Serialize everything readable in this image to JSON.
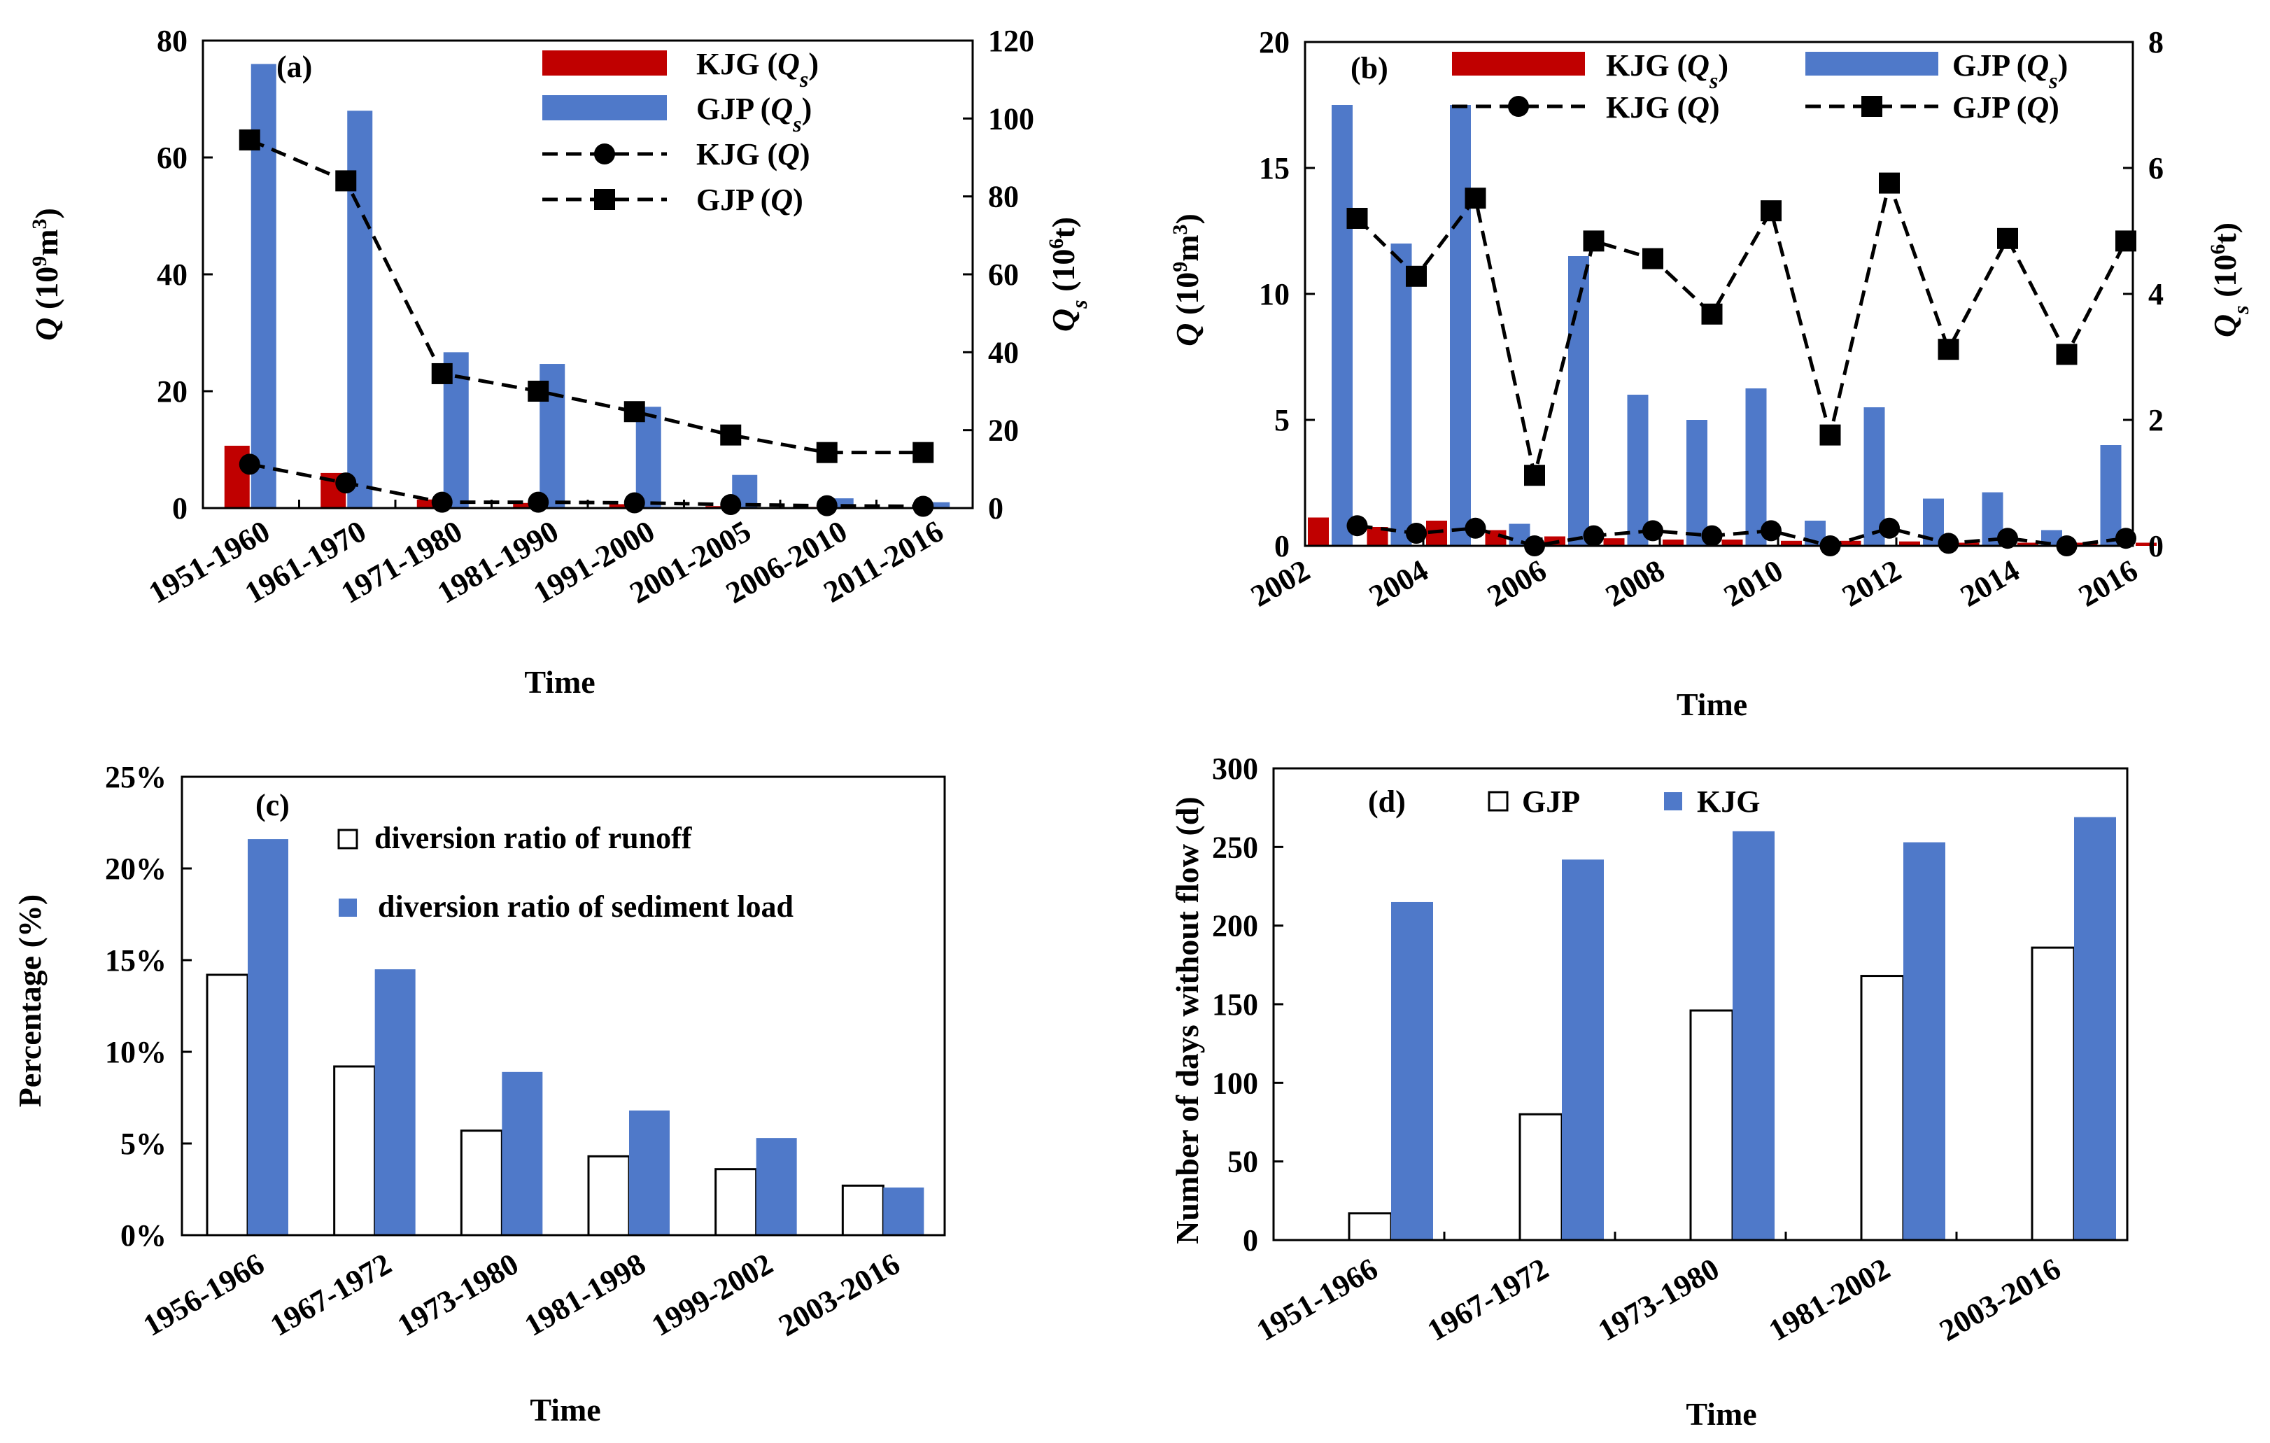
{
  "colors": {
    "blue": "#4f79c9",
    "red": "#c00000",
    "black": "#000000",
    "white": "#ffffff"
  },
  "chart_data": [
    {
      "id": "a",
      "panel_label": "(a)",
      "type": "bar+line",
      "categories": [
        "1951-1960",
        "1961-1970",
        "1971-1980",
        "1981-1990",
        "1991-2000",
        "2001-2005",
        "2006-2010",
        "2011-2016"
      ],
      "bar_series": [
        {
          "name": "KJG (Qs)",
          "parts": [
            "KJG (",
            "Q",
            "s",
            ")"
          ],
          "color": "#c00000",
          "values": [
            16,
            9,
            2.2,
            1.3,
            1.0,
            0.5,
            0.3,
            0.2
          ]
        },
        {
          "name": "GJP (Qs)",
          "parts": [
            "GJP (",
            "Q",
            "s",
            ")"
          ],
          "color": "#4f79c9",
          "values": [
            114,
            102,
            40,
            37,
            26,
            8.5,
            2.5,
            1.5
          ]
        }
      ],
      "line_series": [
        {
          "name": "KJG (Q)",
          "parts": [
            "KJG (",
            "Q",
            "",
            ")"
          ],
          "marker": "circle",
          "values": [
            7.5,
            4.3,
            1.0,
            1.0,
            0.9,
            0.6,
            0.4,
            0.3
          ]
        },
        {
          "name": "GJP (Q)",
          "parts": [
            "GJP (",
            "Q",
            "",
            ")"
          ],
          "marker": "square",
          "values": [
            63,
            56,
            23,
            20,
            16.5,
            12.5,
            9.5,
            9.5
          ]
        }
      ],
      "y_left": {
        "label": "Q (10⁹m³)",
        "q": "Q",
        "unit_pre": " (10",
        "unit_sup": "9",
        "unit_mid": "m",
        "unit_sup2": "3",
        "unit_post": ")",
        "ticks": [
          "0",
          "20",
          "40",
          "60",
          "80"
        ],
        "lim": [
          0,
          80
        ]
      },
      "y_right": {
        "label": "Qs (10⁶t)",
        "q": "Q",
        "q_sub": "s",
        "unit_pre": " (10",
        "unit_sup": "6",
        "unit_post": "t)",
        "ticks": [
          "0",
          "20",
          "40",
          "60",
          "80",
          "100",
          "120"
        ],
        "lim": [
          0,
          120
        ]
      },
      "xlabel": "Time"
    },
    {
      "id": "b",
      "panel_label": "(b)",
      "type": "bar+line",
      "years": [
        "2002",
        "2003",
        "2004",
        "2005",
        "2006",
        "2007",
        "2008",
        "2009",
        "2010",
        "2011",
        "2012",
        "2013",
        "2014",
        "2015",
        "2016"
      ],
      "x_ticks": [
        "2002",
        "2004",
        "2006",
        "2008",
        "2010",
        "2012",
        "2014",
        "2016"
      ],
      "bar_series": [
        {
          "name": "KJG (Qs)",
          "parts": [
            "KJG (",
            "Q",
            "s",
            ")"
          ],
          "color": "#c00000",
          "values": [
            0.45,
            0.3,
            0.4,
            0.25,
            0.15,
            0.12,
            0.1,
            0.1,
            0.08,
            0.08,
            0.07,
            0.05,
            0.05,
            0.05,
            0.05
          ]
        },
        {
          "name": "GJP (Qs)",
          "parts": [
            "GJP (",
            "Q",
            "s",
            ")"
          ],
          "color": "#4f79c9",
          "values": [
            7.0,
            4.8,
            7.0,
            0.35,
            4.6,
            2.4,
            2.0,
            2.5,
            0.4,
            2.2,
            0.75,
            0.85,
            0.25,
            1.6,
            null
          ]
        }
      ],
      "line_series": [
        {
          "name": "KJG (Q)",
          "parts": [
            "KJG (",
            "Q",
            "",
            ")"
          ],
          "marker": "circle",
          "x": [
            2003,
            2004,
            2005,
            2006,
            2007,
            2008,
            2009,
            2010,
            2011,
            2012,
            2013,
            2014,
            2015,
            2016
          ],
          "values": [
            0.8,
            0.5,
            0.7,
            0.0,
            0.4,
            0.6,
            0.4,
            0.6,
            0.0,
            0.7,
            0.1,
            0.3,
            0.0,
            0.3
          ]
        },
        {
          "name": "GJP (Q)",
          "parts": [
            "GJP (",
            "Q",
            "",
            ")"
          ],
          "marker": "square",
          "x": [
            2003,
            2004,
            2005,
            2006,
            2007,
            2008,
            2009,
            2010,
            2011,
            2012,
            2013,
            2014,
            2015,
            2016
          ],
          "values": [
            13,
            10.7,
            13.8,
            2.8,
            12.1,
            11.4,
            9.2,
            13.3,
            4.4,
            14.4,
            7.8,
            12.2,
            7.6,
            12.1
          ]
        }
      ],
      "y_left": {
        "label": "Q (10⁹m³)",
        "q": "Q",
        "unit_pre": " (10",
        "unit_sup": "9",
        "unit_mid": "m",
        "unit_sup2": "3",
        "unit_post": ")",
        "ticks": [
          "0",
          "5",
          "10",
          "15",
          "20"
        ],
        "lim": [
          0,
          20
        ]
      },
      "y_right": {
        "label": "Qs (10⁶t)",
        "q": "Q",
        "q_sub": "s",
        "unit_pre": " (10",
        "unit_sup": "6",
        "unit_post": "t)",
        "ticks": [
          "0",
          "2",
          "4",
          "6",
          "8"
        ],
        "lim": [
          0,
          8
        ]
      },
      "xlabel": "Time"
    },
    {
      "id": "c",
      "panel_label": "(c)",
      "type": "bar",
      "categories": [
        "1956-1966",
        "1967-1972",
        "1973-1980",
        "1981-1998",
        "1999-2002",
        "2003-2016"
      ],
      "series": [
        {
          "name": "diversion ratio of runoff",
          "fill": "#ffffff",
          "values": [
            14.2,
            9.2,
            5.7,
            4.3,
            3.6,
            2.7
          ]
        },
        {
          "name": "diversion ratio of sediment load",
          "fill": "#4f79c9",
          "values": [
            21.6,
            14.5,
            8.9,
            6.8,
            5.3,
            2.6
          ]
        }
      ],
      "y_ticks": [
        "0%",
        "5%",
        "10%",
        "15%",
        "20%",
        "25%"
      ],
      "ylim": [
        0,
        25
      ],
      "ylabel": "Percentage (%)",
      "xlabel": "Time"
    },
    {
      "id": "d",
      "panel_label": "(d)",
      "type": "bar",
      "categories": [
        "1951-1966",
        "1967-1972",
        "1973-1980",
        "1981-2002",
        "2003-2016"
      ],
      "series": [
        {
          "name": "GJP",
          "fill": "#ffffff",
          "values": [
            17,
            80,
            146,
            168,
            186
          ]
        },
        {
          "name": "KJG",
          "fill": "#4f79c9",
          "values": [
            215,
            242,
            260,
            253,
            269
          ]
        }
      ],
      "y_ticks": [
        "0",
        "50",
        "100",
        "150",
        "200",
        "250",
        "300"
      ],
      "ylim": [
        0,
        300
      ],
      "ylabel": "Number of days without flow (d)",
      "xlabel": "Time"
    }
  ]
}
